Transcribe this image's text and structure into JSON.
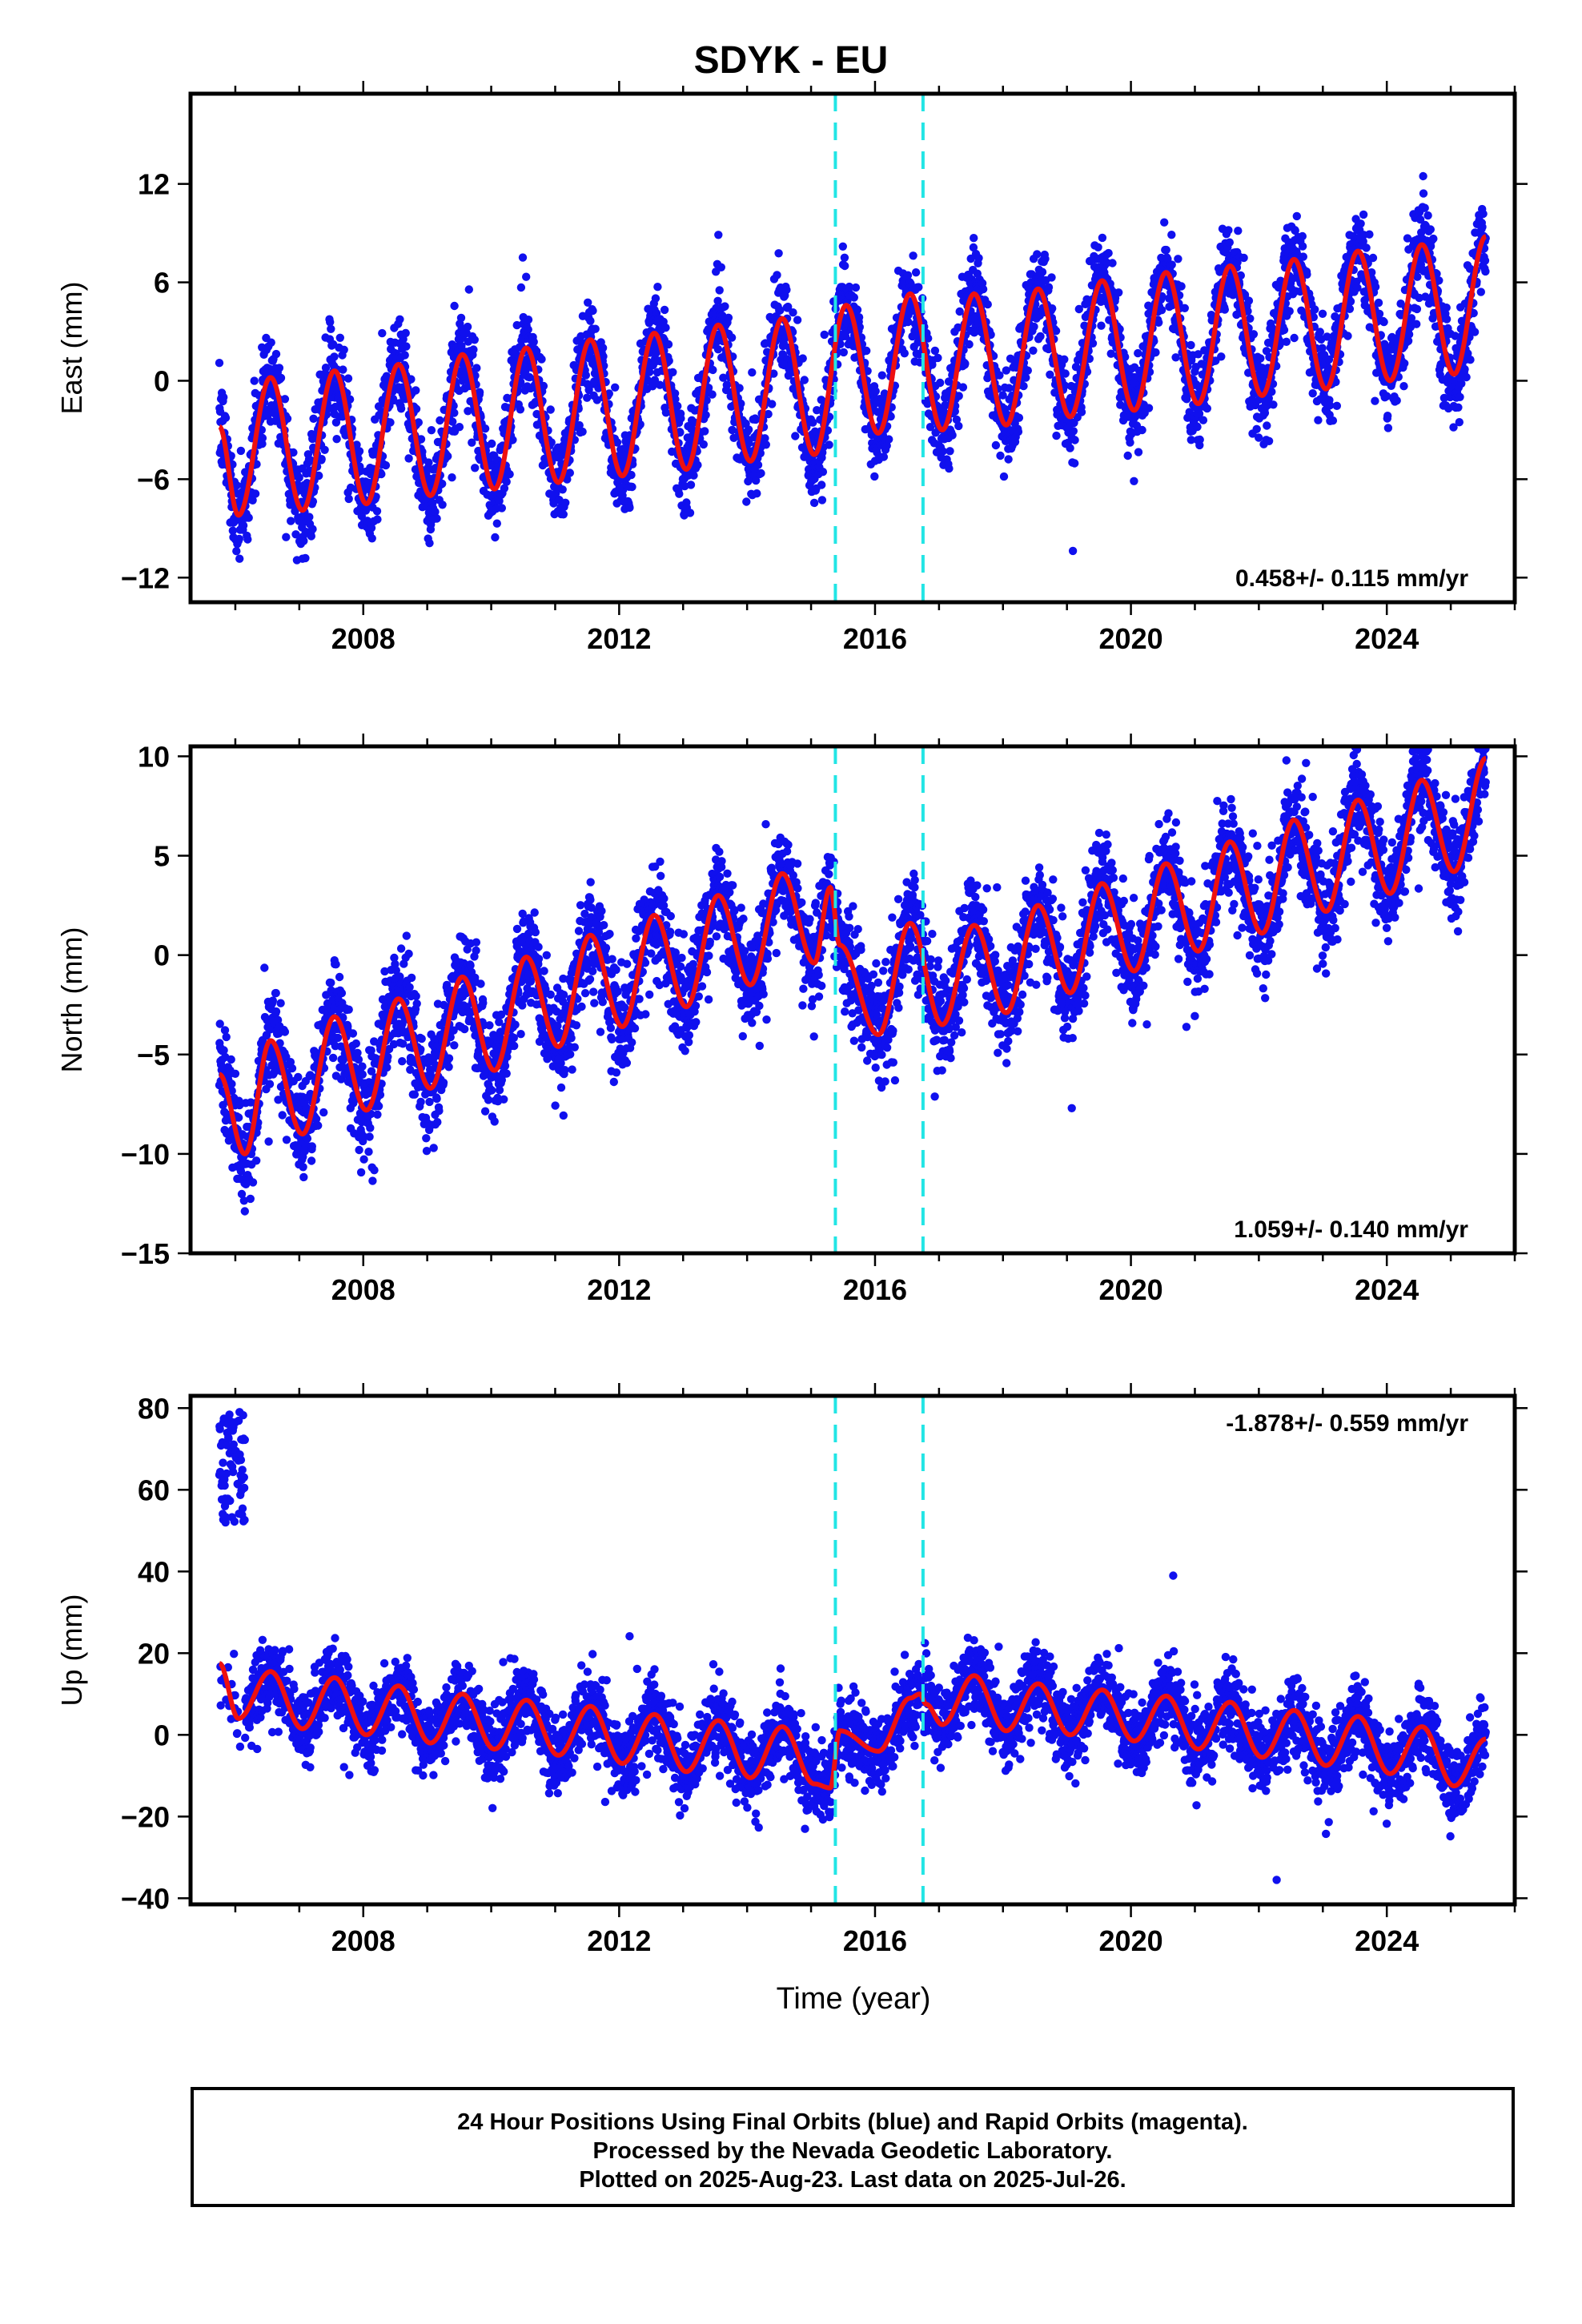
{
  "title": "SDYK - EU",
  "xlabel": "Time (year)",
  "footer": {
    "line1": "24 Hour Positions Using Final Orbits (blue) and Rapid Orbits (magenta).",
    "line2": "Processed by the Nevada Geodetic Laboratory.",
    "line3": "Plotted on 2025-Aug-23. Last data on 2025-Jul-26."
  },
  "colors": {
    "observations": "#1010ee",
    "model": "#ee1010",
    "offsets": "#22e5e5"
  },
  "chart_data": [
    {
      "type": "scatter",
      "component": "east",
      "ylabel": "East (mm)",
      "rate_label": "0.458+/- 0.115 mm/yr",
      "xlim": [
        2005.3,
        2026.0
      ],
      "ylim": [
        -13.5,
        17.5
      ],
      "xticks": [
        2008,
        2012,
        2016,
        2020,
        2024
      ],
      "yticks": [
        -12,
        -6,
        0,
        6,
        12
      ],
      "offset_lines": [
        2015.38,
        2016.75
      ],
      "series": [
        {
          "name": "Final Orbits (blue)",
          "role": "observations",
          "x_start": 2005.75,
          "x_end": 2025.55,
          "noise_sd_mm": 1.4
        },
        {
          "name": "model",
          "role": "fit",
          "x": [
            2005.75,
            2006.05,
            2006.55,
            2007.05,
            2007.55,
            2008.05,
            2008.55,
            2009.05,
            2009.55,
            2010.05,
            2010.55,
            2011.05,
            2011.55,
            2012.05,
            2012.55,
            2013.05,
            2013.55,
            2014.05,
            2014.55,
            2015.05,
            2015.55,
            2016.05,
            2016.55,
            2017.05,
            2017.55,
            2018.05,
            2018.55,
            2019.05,
            2019.55,
            2020.05,
            2020.55,
            2021.05,
            2021.55,
            2022.05,
            2022.55,
            2023.05,
            2023.55,
            2024.05,
            2024.55,
            2025.05,
            2025.55
          ],
          "y": [
            -2.8,
            -8.2,
            0.2,
            -7.9,
            0.6,
            -7.5,
            1.0,
            -7.0,
            1.6,
            -6.6,
            2.0,
            -6.2,
            2.5,
            -5.8,
            2.9,
            -5.4,
            3.4,
            -4.9,
            3.8,
            -4.5,
            4.6,
            -3.2,
            5.3,
            -3.0,
            5.3,
            -2.7,
            5.6,
            -2.2,
            6.1,
            -1.8,
            6.6,
            -1.4,
            7.0,
            -0.9,
            7.4,
            -0.5,
            7.9,
            0.0,
            8.3,
            0.4,
            8.8
          ]
        }
      ]
    },
    {
      "type": "scatter",
      "component": "north",
      "ylabel": "North (mm)",
      "rate_label": "1.059+/- 0.140 mm/yr",
      "xlim": [
        2005.3,
        2026.0
      ],
      "ylim": [
        -15.0,
        10.5
      ],
      "xticks": [
        2008,
        2012,
        2016,
        2020,
        2024
      ],
      "yticks": [
        -15,
        -10,
        -5,
        0,
        5,
        10
      ],
      "offset_lines": [
        2015.38,
        2016.75
      ],
      "series": [
        {
          "name": "Final Orbits (blue)",
          "role": "observations",
          "x_start": 2005.75,
          "x_end": 2025.55,
          "noise_sd_mm": 1.3
        },
        {
          "name": "model",
          "role": "fit",
          "x": [
            2005.75,
            2006.15,
            2006.55,
            2007.05,
            2007.55,
            2008.05,
            2008.55,
            2009.05,
            2009.55,
            2010.05,
            2010.55,
            2011.05,
            2011.55,
            2012.05,
            2012.55,
            2013.05,
            2013.55,
            2014.05,
            2014.55,
            2015.05,
            2015.3,
            2015.45,
            2016.05,
            2016.55,
            2017.05,
            2017.55,
            2018.05,
            2018.55,
            2019.05,
            2019.55,
            2020.05,
            2020.55,
            2021.05,
            2021.55,
            2022.05,
            2022.55,
            2023.05,
            2023.55,
            2024.05,
            2024.55,
            2025.05,
            2025.55
          ],
          "y": [
            -6.0,
            -10.0,
            -4.3,
            -9.0,
            -3.1,
            -7.8,
            -2.2,
            -6.7,
            -1.1,
            -5.8,
            -0.1,
            -4.6,
            1.0,
            -3.6,
            2.0,
            -2.6,
            3.0,
            -1.5,
            4.1,
            -0.4,
            3.4,
            0.5,
            -4.0,
            1.6,
            -3.5,
            1.5,
            -2.9,
            2.5,
            -1.9,
            3.6,
            -0.8,
            4.6,
            0.2,
            5.7,
            1.1,
            6.8,
            2.2,
            7.8,
            3.1,
            8.8,
            4.2,
            9.9
          ]
        }
      ]
    },
    {
      "type": "scatter",
      "component": "up",
      "ylabel": "Up (mm)",
      "rate_label": "-1.878+/- 0.559 mm/yr",
      "xlim": [
        2005.3,
        2026.0
      ],
      "ylim": [
        -41.5,
        83.0
      ],
      "xticks": [
        2008,
        2012,
        2016,
        2020,
        2024
      ],
      "yticks": [
        -40,
        -20,
        0,
        20,
        40,
        60,
        80
      ],
      "offset_lines": [
        2015.38,
        2016.75
      ],
      "series": [
        {
          "name": "Final Orbits (blue)",
          "role": "observations",
          "x_start": 2005.75,
          "x_end": 2025.55,
          "noise_sd_mm": 4.5,
          "early_outliers": {
            "x_start": 2005.75,
            "x_end": 2006.15,
            "y_range": [
              52,
              80
            ]
          }
        },
        {
          "name": "model",
          "role": "fit",
          "x": [
            2005.75,
            2006.05,
            2006.55,
            2007.05,
            2007.55,
            2008.05,
            2008.55,
            2009.05,
            2009.55,
            2010.05,
            2010.55,
            2011.05,
            2011.55,
            2012.05,
            2012.55,
            2013.05,
            2013.55,
            2014.05,
            2014.55,
            2015.05,
            2015.3,
            2015.45,
            2016.05,
            2016.55,
            2016.7,
            2016.8,
            2017.05,
            2017.55,
            2018.05,
            2018.55,
            2019.05,
            2019.55,
            2020.05,
            2020.55,
            2021.05,
            2021.55,
            2022.05,
            2022.55,
            2023.05,
            2023.55,
            2024.05,
            2024.55,
            2025.05,
            2025.55
          ],
          "y": [
            17.5,
            4.0,
            15.5,
            1.5,
            14.0,
            0.0,
            12.0,
            -2.0,
            10.0,
            -3.5,
            8.5,
            -5.0,
            7.0,
            -7.0,
            5.0,
            -9.0,
            3.5,
            -10.5,
            2.0,
            -12.0,
            -13.0,
            1.0,
            -4.0,
            9.0,
            10.0,
            7.5,
            2.5,
            14.5,
            1.0,
            12.5,
            0.0,
            11.0,
            -1.5,
            9.5,
            -3.5,
            8.0,
            -5.5,
            6.0,
            -7.5,
            4.5,
            -9.5,
            2.0,
            -12.5,
            -1.0
          ]
        }
      ]
    }
  ]
}
